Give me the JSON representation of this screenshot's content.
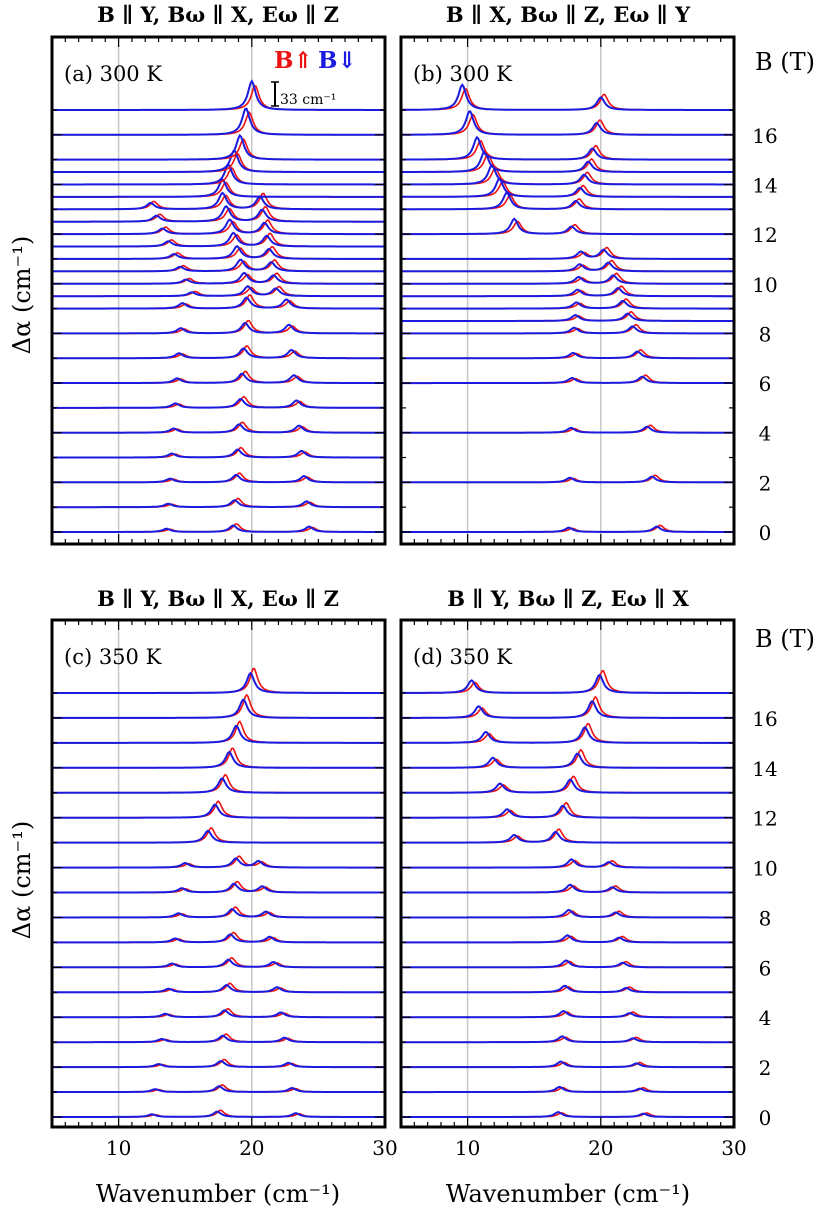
{
  "figure": {
    "ylabel": "Δα (cm⁻¹)",
    "xlabel": "Wavenumber (cm⁻¹)",
    "field_axis_label": "B (T)",
    "scale_bar_label": "33 cm⁻¹",
    "legend_up": "B⇑",
    "legend_down": "B⇓",
    "colors": {
      "up": "#ee1111",
      "down": "#1a1ae0",
      "grid": "#c8c8c8"
    }
  },
  "chart_data": [
    {
      "type": "line",
      "panel": "a",
      "title": "B ∥ Y, Bω ∥ X, Eω ∥ Z",
      "label": "(a) 300 K",
      "xlim": [
        5,
        30
      ],
      "xticks": [
        10,
        20,
        30
      ],
      "field_ticks": [],
      "fields_T": [
        0,
        1,
        2,
        3,
        4,
        5,
        6,
        7,
        8,
        9,
        9.5,
        10,
        10.5,
        11,
        11.5,
        12,
        12.5,
        13,
        13.5,
        14,
        14.5,
        15,
        16,
        17
      ],
      "peaks": [
        {
          "from": 0,
          "to": 9,
          "x0": 13.6,
          "x1": 14.8,
          "h": 0.3
        },
        {
          "from": 0,
          "to": 9,
          "x0": 18.6,
          "x1": 19.6,
          "h": 0.6
        },
        {
          "from": 0,
          "to": 9,
          "x0": 24.3,
          "x1": 22.6,
          "h": 0.5
        },
        {
          "from": 10,
          "to": 17,
          "x0": 15.5,
          "x1": 12.4,
          "h": 0.35
        },
        {
          "from": 10,
          "to": 17,
          "x0": 19.7,
          "x1": 17.8,
          "h": 0.9
        },
        {
          "from": 10,
          "to": 17,
          "x0": 21.8,
          "x1": 20.6,
          "h": 0.7
        },
        {
          "from": 18,
          "to": 23,
          "x0": 17.8,
          "x1": 20.0,
          "h": 1.6
        }
      ]
    },
    {
      "type": "line",
      "panel": "b",
      "title": "B ∥ X, Bω ∥ Z, Eω ∥ Y",
      "label": "(b) 300 K",
      "xlim": [
        5,
        30
      ],
      "xticks": [
        10,
        20,
        30
      ],
      "field_ticks": [
        "0",
        "2",
        "4",
        "6",
        "8",
        "10",
        "12",
        "14",
        "16"
      ],
      "fields_T": [
        0,
        2,
        4,
        6,
        7,
        8,
        8.5,
        9,
        9.5,
        10,
        10.5,
        11,
        12,
        13,
        13.5,
        14,
        14.5,
        15,
        16,
        17
      ],
      "peaks": [
        {
          "from": 0,
          "to": 11,
          "x0": 17.6,
          "x1": 18.5,
          "h": 0.4
        },
        {
          "from": 0,
          "to": 11,
          "x0": 24.2,
          "x1": 20.2,
          "h": 0.5
        },
        {
          "from": 12,
          "to": 19,
          "x0": 13.5,
          "x1": 9.6,
          "h": 1.4
        },
        {
          "from": 12,
          "to": 19,
          "x0": 17.8,
          "x1": 20.0,
          "h": 0.7
        }
      ]
    },
    {
      "type": "line",
      "panel": "c",
      "title": "B ∥ Y, Bω ∥ X, Eω ∥ Z",
      "label": "(c) 350 K",
      "xlim": [
        5,
        30
      ],
      "xticks": [
        10,
        20,
        30
      ],
      "field_ticks": [],
      "fields_T": [
        0,
        1,
        2,
        3,
        4,
        5,
        6,
        7,
        8,
        9,
        10,
        11,
        12,
        13,
        14,
        15,
        16,
        17
      ],
      "peaks": [
        {
          "from": 0,
          "to": 10,
          "x0": 12.5,
          "x1": 15.0,
          "h": 0.25
        },
        {
          "from": 0,
          "to": 10,
          "x0": 17.4,
          "x1": 18.8,
          "h": 0.5
        },
        {
          "from": 0,
          "to": 10,
          "x0": 23.3,
          "x1": 20.5,
          "h": 0.35
        },
        {
          "from": 11,
          "to": 17,
          "x0": 16.7,
          "x1": 19.9,
          "h": 1.1
        }
      ]
    },
    {
      "type": "line",
      "panel": "d",
      "title": "B ∥ Y, Bω ∥ Z, Eω ∥ X",
      "label": "(d) 350 K",
      "xlim": [
        5,
        30
      ],
      "xticks": [
        10,
        20,
        30
      ],
      "field_ticks": [
        "0",
        "2",
        "4",
        "6",
        "8",
        "10",
        "12",
        "14",
        "16"
      ],
      "fields_T": [
        0,
        1,
        2,
        3,
        4,
        5,
        6,
        7,
        8,
        9,
        10,
        11,
        12,
        13,
        14,
        15,
        16,
        17
      ],
      "peaks": [
        {
          "from": 0,
          "to": 10,
          "x0": 16.8,
          "x1": 17.8,
          "h": 0.45
        },
        {
          "from": 0,
          "to": 10,
          "x0": 23.2,
          "x1": 20.6,
          "h": 0.3
        },
        {
          "from": 11,
          "to": 17,
          "x0": 13.5,
          "x1": 10.3,
          "h": 0.7
        },
        {
          "from": 11,
          "to": 17,
          "x0": 16.6,
          "x1": 19.9,
          "h": 1.0
        }
      ]
    }
  ]
}
